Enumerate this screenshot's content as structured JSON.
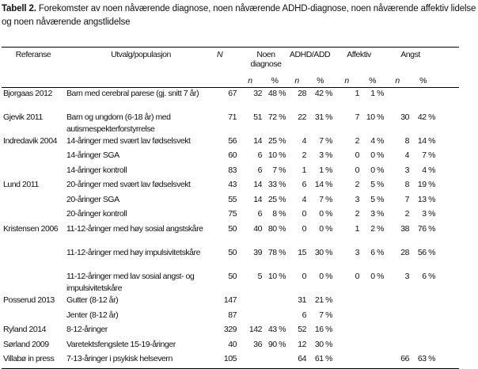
{
  "title": {
    "label": "Tabell 2.",
    "text": " Forekomster av noen nåværende diagnose, noen nåværende ADHD-diagnose, noen nåværende affektiv lidelse og noen nåværende angstlidelse"
  },
  "headers": {
    "referanse": "Referanse",
    "utvalg": "Utvalg/populasjon",
    "n_total": "N",
    "noen": "Noen diagnose",
    "adhd": "ADHD/ADD",
    "affektiv": "Affektiv",
    "angst": "Angst",
    "n": "n",
    "pct": "%"
  },
  "rows": [
    {
      "ref": "Bjorgaas 2012",
      "utvalg": "Barn med cerebral parese (gj. snitt 7 år)",
      "N": "67",
      "noen_n": "32",
      "noen_p": "48 %",
      "adhd_n": "28",
      "adhd_p": "42 %",
      "aff_n": "1",
      "aff_p": "1 %",
      "angst_n": "",
      "angst_p": ""
    },
    {
      "ref": "Gjevik 2011",
      "utvalg": "Barn og ungdom (6-18 år) med autismespekterforstyrrelse",
      "N": "71",
      "noen_n": "51",
      "noen_p": "72 %",
      "adhd_n": "22",
      "adhd_p": "31 %",
      "aff_n": "7",
      "aff_p": "10 %",
      "angst_n": "30",
      "angst_p": "42 %"
    },
    {
      "ref": "Indredavik 2004",
      "utvalg": "14-åringer med svært lav fødselsvekt",
      "N": "56",
      "noen_n": "14",
      "noen_p": "25 %",
      "adhd_n": "4",
      "adhd_p": "7 %",
      "aff_n": "2",
      "aff_p": "4 %",
      "angst_n": "8",
      "angst_p": "14 %"
    },
    {
      "ref": "",
      "utvalg": "14-åringer SGA",
      "N": "60",
      "noen_n": "6",
      "noen_p": "10 %",
      "adhd_n": "2",
      "adhd_p": "3 %",
      "aff_n": "0",
      "aff_p": "0 %",
      "angst_n": "4",
      "angst_p": "7 %"
    },
    {
      "ref": "",
      "utvalg": "14-åringer kontroll",
      "N": "83",
      "noen_n": "6",
      "noen_p": "7 %",
      "adhd_n": "1",
      "adhd_p": "1 %",
      "aff_n": "0",
      "aff_p": "0 %",
      "angst_n": "3",
      "angst_p": "4 %"
    },
    {
      "ref": "Lund 2011",
      "utvalg": "20-åringer med svært lav fødselsvekt",
      "N": "43",
      "noen_n": "14",
      "noen_p": "33 %",
      "adhd_n": "6",
      "adhd_p": "14 %",
      "aff_n": "2",
      "aff_p": "5 %",
      "angst_n": "8",
      "angst_p": "19 %"
    },
    {
      "ref": "",
      "utvalg": "20-åringer SGA",
      "N": "55",
      "noen_n": "14",
      "noen_p": "25 %",
      "adhd_n": "4",
      "adhd_p": "7 %",
      "aff_n": "3",
      "aff_p": "5 %",
      "angst_n": "7",
      "angst_p": "13 %"
    },
    {
      "ref": "",
      "utvalg": "20-åringer kontroll",
      "N": "75",
      "noen_n": "6",
      "noen_p": "8 %",
      "adhd_n": "0",
      "adhd_p": "0 %",
      "aff_n": "2",
      "aff_p": "3 %",
      "angst_n": "2",
      "angst_p": "3 %"
    },
    {
      "ref": "Kristensen 2006",
      "utvalg": "11-12-åringer med høy sosial angstskåre",
      "N": "50",
      "noen_n": "40",
      "noen_p": "80 %",
      "adhd_n": "0",
      "adhd_p": "0 %",
      "aff_n": "1",
      "aff_p": "2 %",
      "angst_n": "38",
      "angst_p": "76 %"
    },
    {
      "ref": "",
      "utvalg": "11-12-åringer med høy impulsivitetskåre",
      "N": "50",
      "noen_n": "39",
      "noen_p": "78 %",
      "adhd_n": "15",
      "adhd_p": "30 %",
      "aff_n": "3",
      "aff_p": "6 %",
      "angst_n": "28",
      "angst_p": "56 %"
    },
    {
      "ref": "",
      "utvalg": "11-12-åringer med lav sosial angst- og impulsivitetskåre",
      "N": "50",
      "noen_n": "5",
      "noen_p": "10 %",
      "adhd_n": "0",
      "adhd_p": "0 %",
      "aff_n": "0",
      "aff_p": "0 %",
      "angst_n": "3",
      "angst_p": "6 %"
    },
    {
      "ref": "Posserud 2013",
      "utvalg": "Gutter (8-12 år)",
      "N": "147",
      "noen_n": "",
      "noen_p": "",
      "adhd_n": "31",
      "adhd_p": "21 %",
      "aff_n": "",
      "aff_p": "",
      "angst_n": "",
      "angst_p": ""
    },
    {
      "ref": "",
      "utvalg": "Jenter (8-12 år)",
      "N": "87",
      "noen_n": "",
      "noen_p": "",
      "adhd_n": "6",
      "adhd_p": "7 %",
      "aff_n": "",
      "aff_p": "",
      "angst_n": "",
      "angst_p": ""
    },
    {
      "ref": "Ryland 2014",
      "utvalg": "8-12-åringer",
      "N": "329",
      "noen_n": "142",
      "noen_p": "43 %",
      "adhd_n": "52",
      "adhd_p": "16 %",
      "aff_n": "",
      "aff_p": "",
      "angst_n": "",
      "angst_p": ""
    },
    {
      "ref": "Sørland 2009",
      "utvalg": "Varetektsfengslete 15-19-åringer",
      "N": "40",
      "noen_n": "36",
      "noen_p": "90 %",
      "adhd_n": "12",
      "adhd_p": "30 %",
      "aff_n": "",
      "aff_p": "",
      "angst_n": "",
      "angst_p": ""
    },
    {
      "ref": "Villabø in press",
      "utvalg": "7-13-åringer i psykisk helsevern",
      "N": "105",
      "noen_n": "",
      "noen_p": "",
      "adhd_n": "64",
      "adhd_p": "61 %",
      "aff_n": "",
      "aff_p": "",
      "angst_n": "66",
      "angst_p": "63 %"
    }
  ]
}
